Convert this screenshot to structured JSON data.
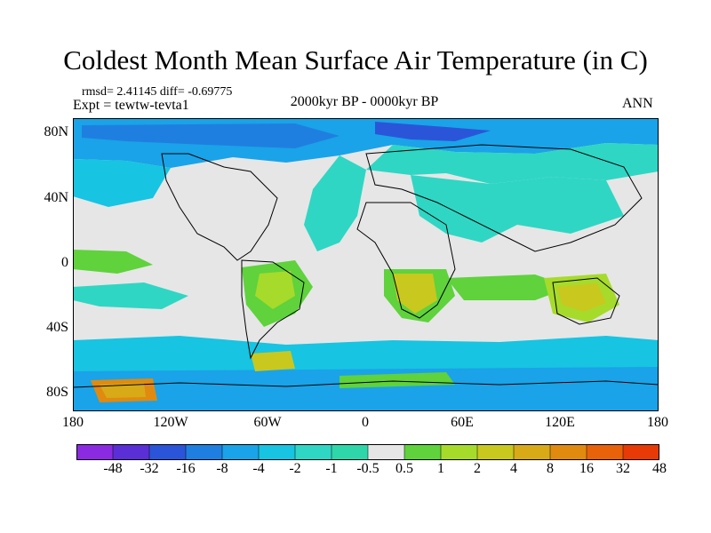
{
  "title": "Coldest Month Mean Surface Air Temperature (in C)",
  "stats": "rmsd= 2.41145 diff= -0.69775",
  "expt": "Expt = tewtw-tevta1",
  "period": "2000kyr BP - 0000kyr BP",
  "season": "ANN",
  "y_ticks": [
    "80N",
    "40N",
    "0",
    "40S",
    "80S"
  ],
  "x_ticks": [
    "180",
    "120W",
    "60W",
    "0",
    "60E",
    "120E",
    "180"
  ],
  "colorbar": {
    "labels": [
      "-48",
      "-32",
      "-16",
      "-8",
      "-4",
      "-2",
      "-1",
      "-0.5",
      "0.5",
      "1",
      "2",
      "4",
      "8",
      "16",
      "32",
      "48"
    ],
    "colors": [
      "#8a2be2",
      "#5a2fd6",
      "#2b55d8",
      "#1f7fe0",
      "#1aa3e8",
      "#17c4e2",
      "#2fd6c4",
      "#2fd6a9",
      "#e6e6e6",
      "#5fd23c",
      "#a6db2b",
      "#c9c81e",
      "#d8aa18",
      "#e08a10",
      "#e8620a",
      "#e83a06"
    ]
  },
  "map_colors": {
    "neutral": "#e6e6e6",
    "cool_light": "#2fd6c4",
    "cool_mid": "#17c4e2",
    "cool": "#1aa3e8",
    "cold": "#1f7fe0",
    "colder": "#2b55d8",
    "warm_light": "#5fd23c",
    "warm": "#a6db2b",
    "warmer": "#c9c81e",
    "hot": "#d8aa18",
    "hotter": "#e08a10",
    "coast": "#000000"
  }
}
